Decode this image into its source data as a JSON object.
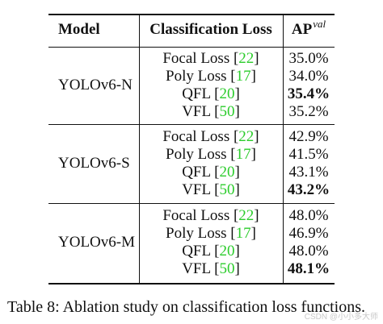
{
  "table": {
    "headers": {
      "model": "Model",
      "loss": "Classification Loss",
      "ap": "AP",
      "ap_superscript": "val"
    },
    "groups": [
      {
        "model": "YOLOv6-N",
        "rows": [
          {
            "loss": "Focal Loss",
            "cite": "22",
            "ap": "35.0%",
            "best": false
          },
          {
            "loss": "Poly Loss",
            "cite": "17",
            "ap": "34.0%",
            "best": false
          },
          {
            "loss": "QFL",
            "cite": "20",
            "ap": "35.4%",
            "best": true
          },
          {
            "loss": "VFL",
            "cite": "50",
            "ap": "35.2%",
            "best": false
          }
        ]
      },
      {
        "model": "YOLOv6-S",
        "rows": [
          {
            "loss": "Focal Loss",
            "cite": "22",
            "ap": "42.9%",
            "best": false
          },
          {
            "loss": "Poly Loss",
            "cite": "17",
            "ap": "41.5%",
            "best": false
          },
          {
            "loss": "QFL",
            "cite": "20",
            "ap": "43.1%",
            "best": false
          },
          {
            "loss": "VFL",
            "cite": "50",
            "ap": "43.2%",
            "best": true
          }
        ]
      },
      {
        "model": "YOLOv6-M",
        "rows": [
          {
            "loss": "Focal Loss",
            "cite": "22",
            "ap": "48.0%",
            "best": false
          },
          {
            "loss": "Poly Loss",
            "cite": "17",
            "ap": "46.9%",
            "best": false
          },
          {
            "loss": "QFL",
            "cite": "20",
            "ap": "48.0%",
            "best": false
          },
          {
            "loss": "VFL",
            "cite": "50",
            "ap": "48.1%",
            "best": true
          }
        ]
      }
    ]
  },
  "caption": "Table 8: Ablation study on classification loss functions.",
  "watermark": "CSDN @小小多大师",
  "colors": {
    "citation": "#2bcc2b",
    "text": "#111111"
  }
}
